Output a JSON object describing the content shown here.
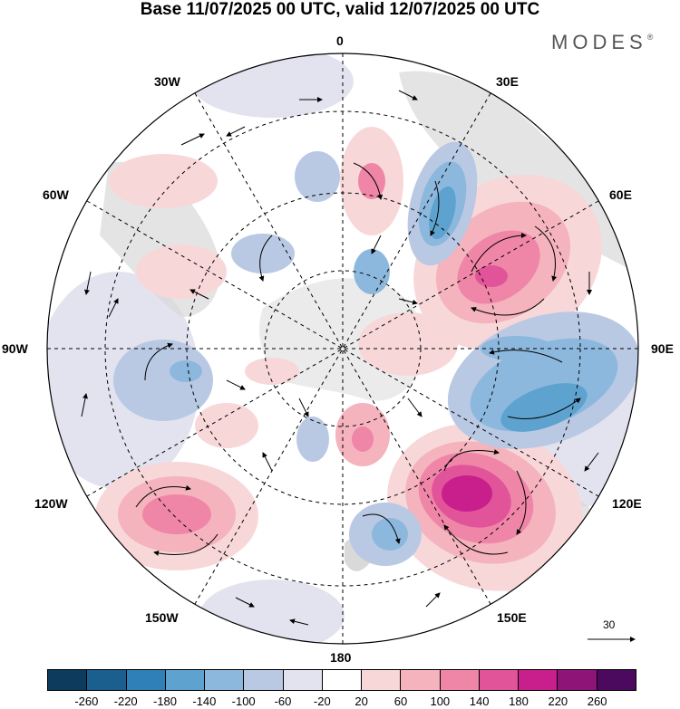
{
  "title": "Base 11/07/2025 00 UTC, valid 12/07/2025 00 UTC",
  "brand": "MODES",
  "brand_mark": "®",
  "longitude_labels": {
    "top": "0",
    "bottom": "180",
    "left": "90W",
    "right": "90E",
    "w30": "30W",
    "w60": "60W",
    "w120": "120W",
    "w150": "150W",
    "e30": "30E",
    "e60": "60E",
    "e120": "120E",
    "e150": "150E"
  },
  "reference_vector": {
    "value": "30"
  },
  "colorbar": {
    "colors": [
      "#0c3b5e",
      "#1a5f8e",
      "#2f80b8",
      "#5ea3cf",
      "#8db8dd",
      "#b9c9e3",
      "#e3e3f0",
      "#ffffff",
      "#f8d7d9",
      "#f4b3bd",
      "#ef86a8",
      "#e2549a",
      "#c81f8c",
      "#8e1477",
      "#4b0a5e"
    ],
    "ticks": [
      "-260",
      "-220",
      "-180",
      "-140",
      "-100",
      "-60",
      "-20",
      "20",
      "60",
      "100",
      "140",
      "180",
      "220",
      "260"
    ]
  },
  "anomaly_blobs": [
    {
      "name": "ne-positive",
      "color": "#ef86a8"
    },
    {
      "name": "se-positive",
      "color": "#c81f8c"
    },
    {
      "name": "sw-positive",
      "color": "#ef86a8"
    },
    {
      "name": "e-negative",
      "color": "#5ea3cf"
    },
    {
      "name": "n-negative",
      "color": "#5ea3cf"
    }
  ]
}
